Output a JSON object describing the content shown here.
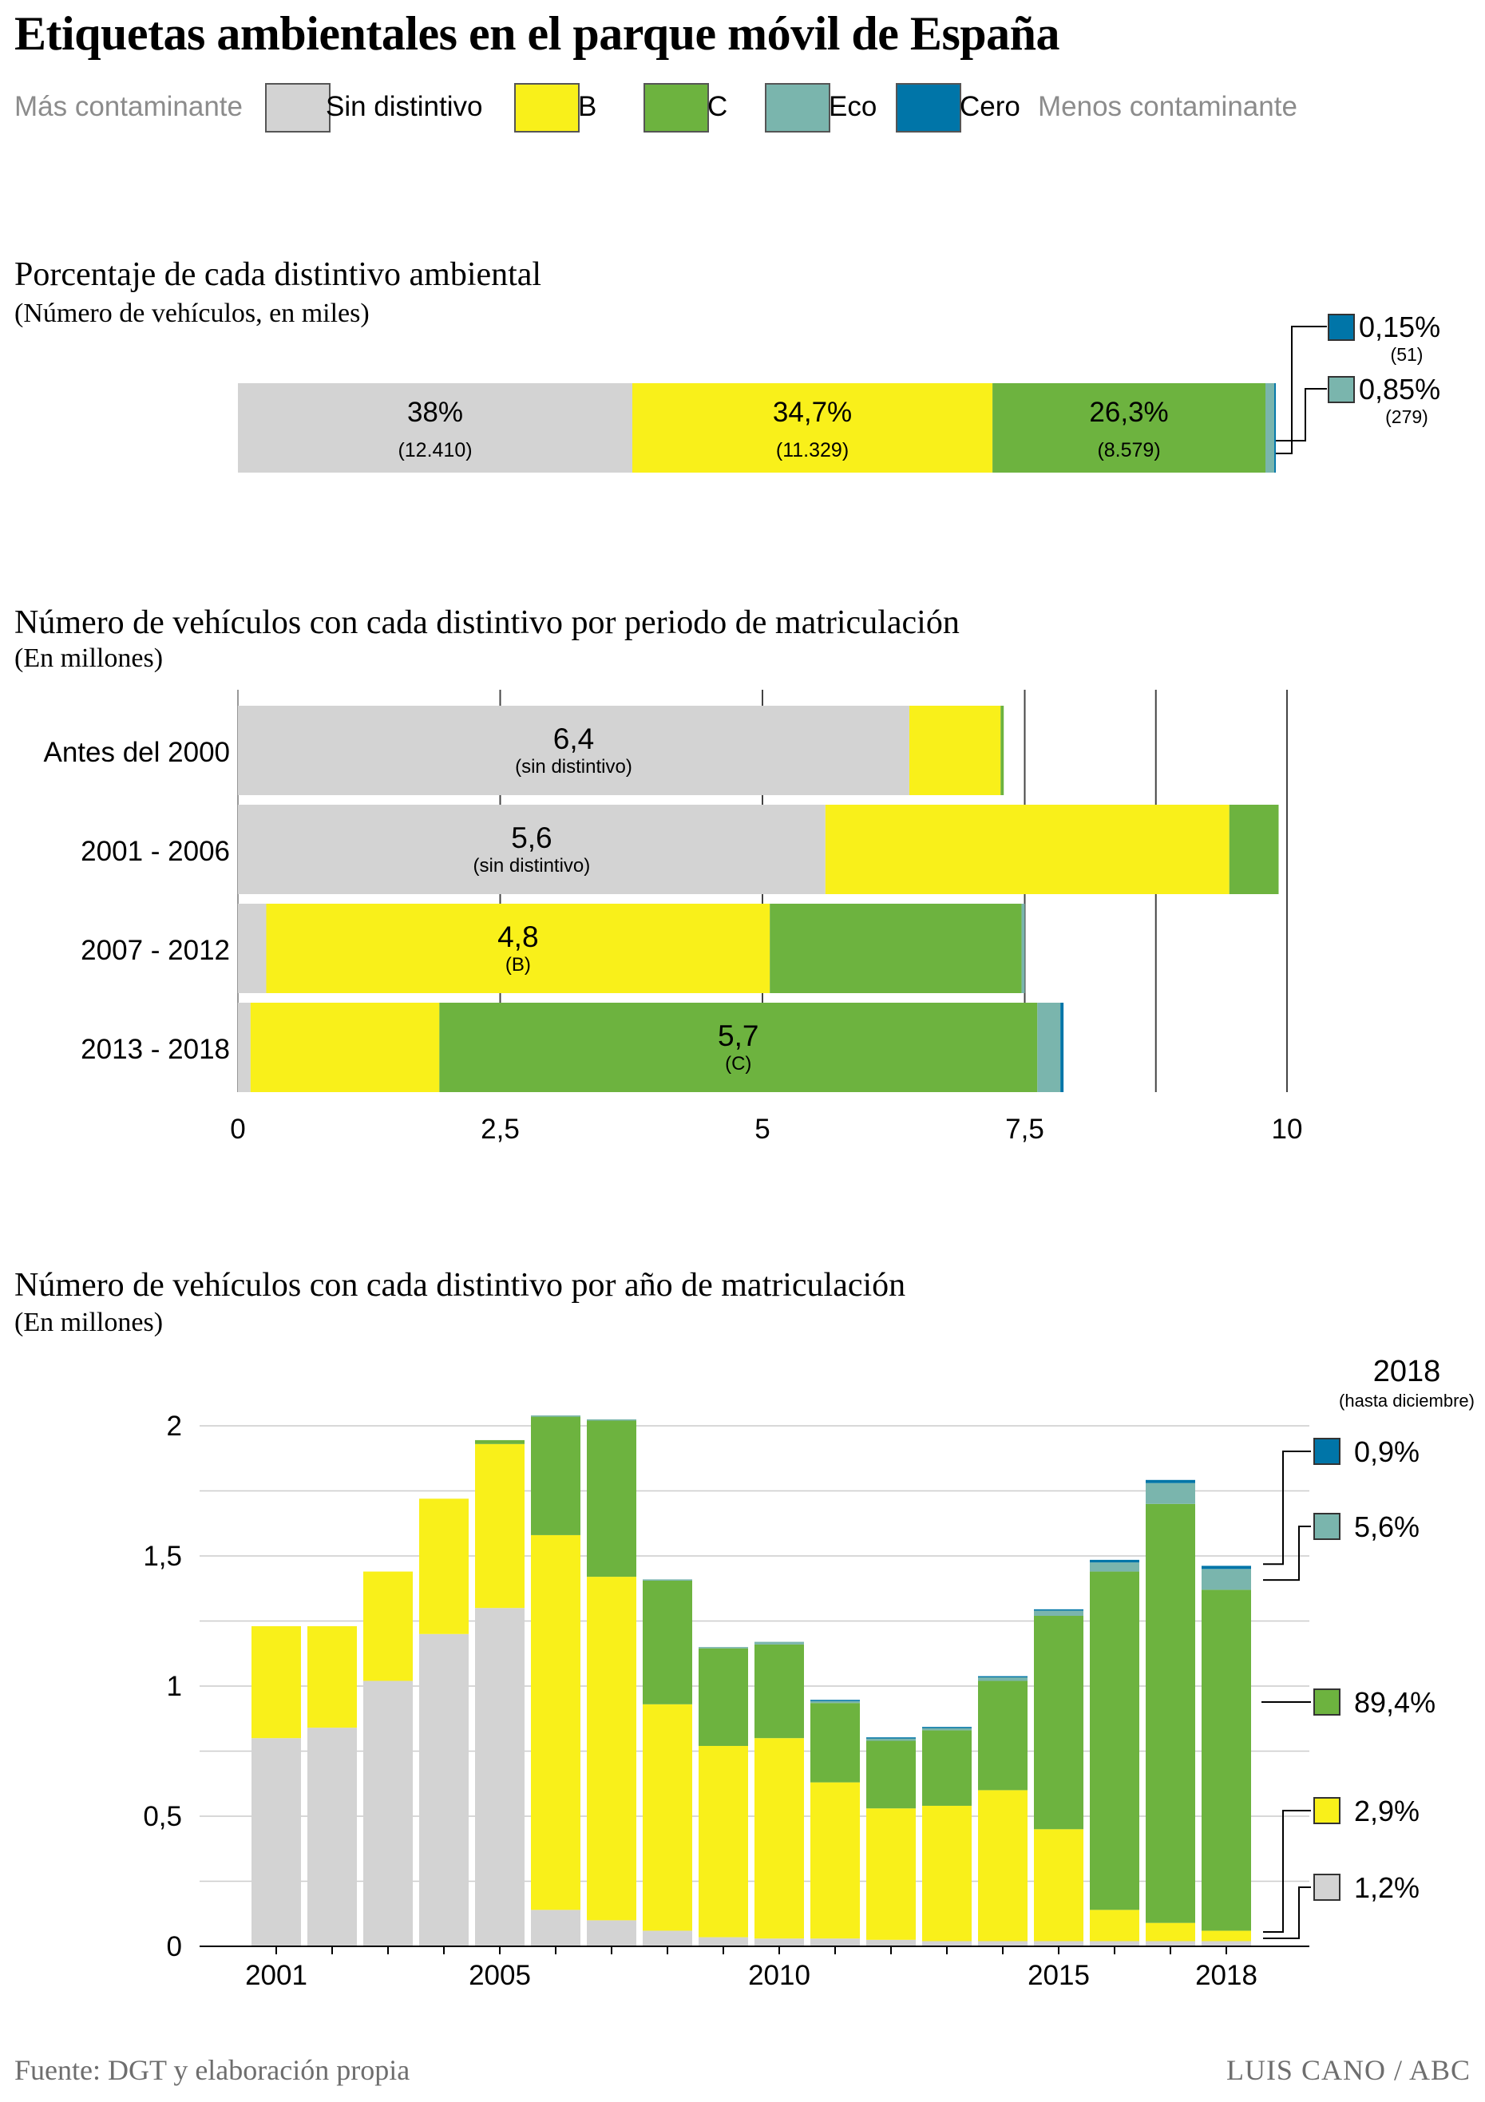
{
  "title": "Etiquetas ambientales en el parque móvil de España",
  "colors": {
    "sin": "#d3d3d3",
    "b": "#f9f01a",
    "c": "#6db33f",
    "eco": "#7ab5ad",
    "cero": "#0075a8",
    "grid": "#cccccc",
    "axis": "#000000"
  },
  "legend": {
    "left_label": "Más contaminante",
    "right_label": "Menos contaminante",
    "items": [
      {
        "label": "Sin distintivo",
        "color": "#d3d3d3"
      },
      {
        "label": "B",
        "color": "#f9f01a"
      },
      {
        "label": "C",
        "color": "#6db33f"
      },
      {
        "label": "Eco",
        "color": "#7ab5ad"
      },
      {
        "label": "Cero",
        "color": "#0075a8"
      }
    ]
  },
  "chart1": {
    "title": "Porcentaje de cada distintivo ambiental",
    "subtitle": "(Número de vehículos, en miles)"
  },
  "chart2": {
    "title": "Número de vehículos con cada distintivo por periodo de matriculación",
    "subtitle": "(En millones)"
  },
  "chart3": {
    "title": "Número de vehículos con cada distintivo por año de matriculación",
    "subtitle": "(En millones)",
    "callout_title": "2018",
    "callout_subtitle": "(hasta diciembre)"
  },
  "footer": {
    "source": "Fuente: DGT y elaboración propia",
    "credit": "LUIS CANO / ABC"
  },
  "chart_data": [
    {
      "type": "bar",
      "orientation": "horizontal-stacked-100",
      "title": "Porcentaje de cada distintivo ambiental",
      "categories": [
        "Sin distintivo",
        "B",
        "C",
        "Eco",
        "Cero"
      ],
      "values": [
        38,
        34.7,
        26.3,
        0.85,
        0.15
      ],
      "labels": [
        "38%",
        "34,7%",
        "26,3%",
        "0,85%",
        "0,15%"
      ],
      "counts": [
        "(12.410)",
        "(11.329)",
        "(8.579)",
        "(279)",
        "(51)"
      ]
    },
    {
      "type": "bar",
      "orientation": "horizontal-stacked",
      "title": "Número de vehículos con cada distintivo por periodo de matriculación",
      "xlim": [
        0,
        10
      ],
      "x_ticks": [
        0,
        2.5,
        5,
        7.5,
        10
      ],
      "x_tick_labels": [
        "0",
        "2,5",
        "5",
        "7,5",
        "10"
      ],
      "categories": [
        "Antes del 2000",
        "2001 - 2006",
        "2007 - 2012",
        "2013 - 2018"
      ],
      "series": [
        {
          "name": "Sin distintivo",
          "values": [
            6.4,
            5.6,
            0.27,
            0.12
          ]
        },
        {
          "name": "B",
          "values": [
            0.87,
            3.85,
            4.8,
            1.8
          ]
        },
        {
          "name": "C",
          "values": [
            0.03,
            0.47,
            2.4,
            5.7
          ]
        },
        {
          "name": "Eco",
          "values": [
            0,
            0,
            0.03,
            0.22
          ]
        },
        {
          "name": "Cero",
          "values": [
            0,
            0,
            0,
            0.03
          ]
        }
      ],
      "annotations": [
        {
          "category": "Antes del 2000",
          "series": "Sin distintivo",
          "value": "6,4",
          "note": "(sin distintivo)"
        },
        {
          "category": "2001 - 2006",
          "series": "Sin distintivo",
          "value": "5,6",
          "note": "(sin distintivo)"
        },
        {
          "category": "2007 - 2012",
          "series": "B",
          "value": "4,8",
          "note": "(B)"
        },
        {
          "category": "2013 - 2018",
          "series": "C",
          "value": "5,7",
          "note": "(C)"
        }
      ]
    },
    {
      "type": "bar",
      "orientation": "vertical-stacked",
      "title": "Número de vehículos con cada distintivo por año de matriculación",
      "ylim": [
        0,
        2
      ],
      "y_ticks": [
        0,
        0.5,
        1,
        1.5,
        2
      ],
      "y_tick_labels": [
        "0",
        "0,5",
        "1",
        "1,5",
        "2"
      ],
      "x": [
        2001,
        2002,
        2003,
        2004,
        2005,
        2006,
        2007,
        2008,
        2009,
        2010,
        2011,
        2012,
        2013,
        2014,
        2015,
        2016,
        2017,
        2018
      ],
      "x_tick_labels": {
        "2001": "2001",
        "2005": "2005",
        "2010": "2010",
        "2015": "2015",
        "2018": "2018"
      },
      "series": [
        {
          "name": "Sin distintivo",
          "values": [
            0.8,
            0.84,
            1.02,
            1.2,
            1.3,
            0.14,
            0.1,
            0.06,
            0.035,
            0.03,
            0.03,
            0.025,
            0.02,
            0.02,
            0.02,
            0.02,
            0.02,
            0.02
          ]
        },
        {
          "name": "B",
          "values": [
            0.43,
            0.39,
            0.42,
            0.52,
            0.63,
            1.44,
            1.32,
            0.87,
            0.735,
            0.77,
            0.6,
            0.505,
            0.52,
            0.58,
            0.43,
            0.12,
            0.07,
            0.04
          ]
        },
        {
          "name": "C",
          "values": [
            0,
            0,
            0,
            0,
            0.015,
            0.455,
            0.6,
            0.475,
            0.375,
            0.36,
            0.305,
            0.26,
            0.29,
            0.42,
            0.82,
            1.3,
            1.61,
            1.31
          ]
        },
        {
          "name": "Eco",
          "values": [
            0,
            0,
            0,
            0,
            0,
            0.005,
            0.005,
            0.005,
            0.005,
            0.01,
            0.01,
            0.01,
            0.01,
            0.015,
            0.02,
            0.035,
            0.08,
            0.08
          ]
        },
        {
          "name": "Cero",
          "values": [
            0,
            0,
            0,
            0,
            0,
            0,
            0,
            0,
            0,
            0,
            0.002,
            0.003,
            0.003,
            0.003,
            0.005,
            0.01,
            0.012,
            0.012
          ]
        }
      ],
      "callout_2018": [
        {
          "series": "Cero",
          "label": "0,9%"
        },
        {
          "series": "Eco",
          "label": "5,6%"
        },
        {
          "series": "C",
          "label": "89,4%"
        },
        {
          "series": "B",
          "label": "2,9%"
        },
        {
          "series": "Sin distintivo",
          "label": "1,2%"
        }
      ]
    }
  ]
}
